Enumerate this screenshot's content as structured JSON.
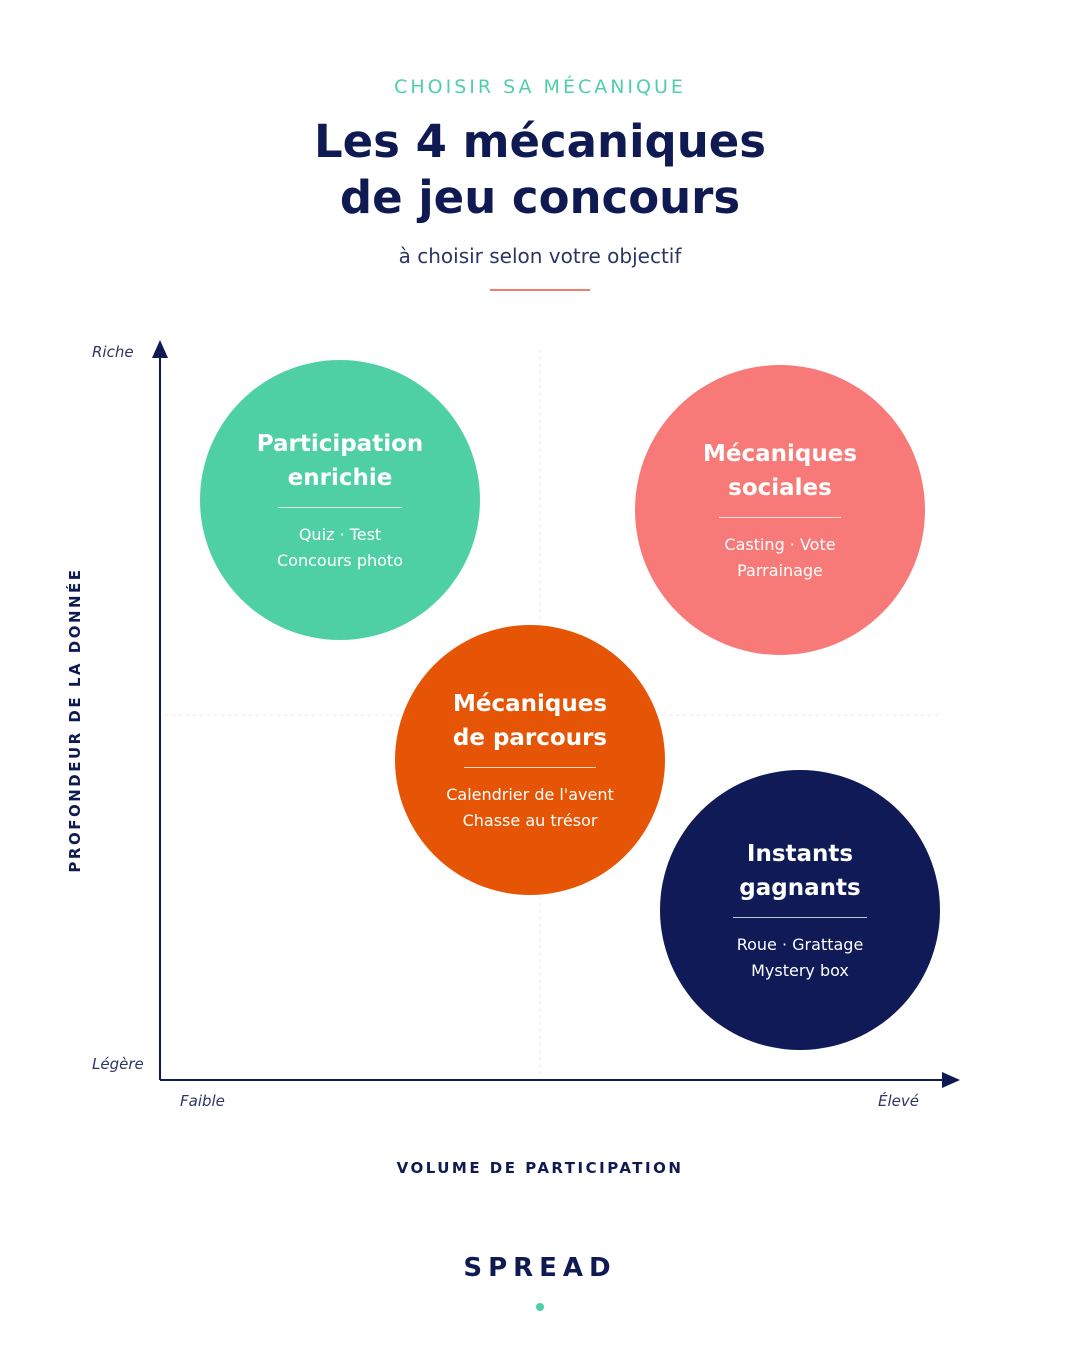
{
  "header": {
    "eyebrow": "CHOISIR SA MÉCANIQUE",
    "title_line1": "Les 4 mécaniques",
    "title_line2": "de jeu concours",
    "subtitle": "à choisir selon votre objectif"
  },
  "axes": {
    "y_title": "PROFONDEUR DE LA DONNÉE",
    "y_high": "Riche",
    "y_low": "Légère",
    "x_title": "VOLUME DE PARTICIPATION",
    "x_low": "Faible",
    "x_high": "Élevé"
  },
  "bubbles": [
    {
      "title_line1": "Participation",
      "title_line2": "enrichie",
      "line1": "Quiz · Test",
      "line2": "Concours photo",
      "color": "#4fd0a4"
    },
    {
      "title_line1": "Mécaniques",
      "title_line2": "sociales",
      "line1": "Casting · Vote",
      "line2": "Parrainage",
      "color": "#f77a79"
    },
    {
      "title_line1": "Mécaniques",
      "title_line2": "de parcours",
      "line1": "Calendrier de l'avent",
      "line2": "Chasse au trésor",
      "color": "#e65505"
    },
    {
      "title_line1": "Instants",
      "title_line2": "gagnants",
      "line1": "Roue · Grattage",
      "line2": "Mystery box",
      "color": "#0f1a56"
    }
  ],
  "footer": {
    "brand": "SPREAD"
  },
  "colors": {
    "navy": "#101a52",
    "accent_green": "#4fd0a4",
    "accent_red": "#f27b72"
  }
}
